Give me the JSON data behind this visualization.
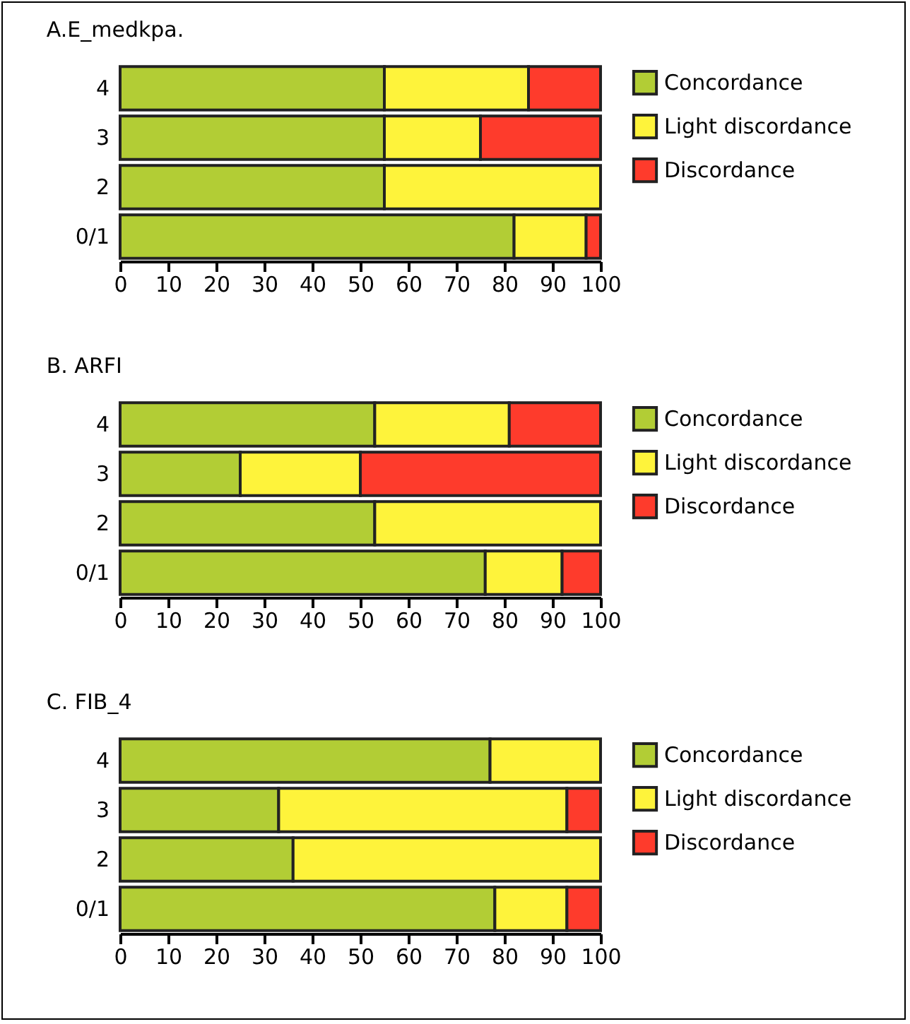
{
  "chart_data": [
    {
      "type": "bar",
      "orientation": "horizontal",
      "stacked": true,
      "title": "A.E_medkpa.",
      "categories": [
        "4",
        "3",
        "2",
        "0/1"
      ],
      "xlim": [
        0,
        100
      ],
      "xticks": [
        0,
        10,
        20,
        30,
        40,
        50,
        60,
        70,
        80,
        90,
        100
      ],
      "legend": "top right",
      "series": [
        {
          "name": "Concordance",
          "color": "#b2cd35",
          "values": [
            55,
            55,
            55,
            82
          ]
        },
        {
          "name": "Light discordance",
          "color": "#fef33b",
          "values": [
            30,
            20,
            45,
            15
          ]
        },
        {
          "name": "Discordance",
          "color": "#fe3b2c",
          "values": [
            15,
            25,
            null,
            3
          ]
        }
      ]
    },
    {
      "type": "bar",
      "orientation": "horizontal",
      "stacked": true,
      "title": "B. ARFI",
      "categories": [
        "4",
        "3",
        "2",
        "0/1"
      ],
      "xlim": [
        0,
        100
      ],
      "xticks": [
        0,
        10,
        20,
        30,
        40,
        50,
        60,
        70,
        80,
        90,
        100
      ],
      "legend": "top right",
      "series": [
        {
          "name": "Concordance",
          "color": "#b2cd35",
          "values": [
            53,
            25,
            53,
            76
          ]
        },
        {
          "name": "Light discordance",
          "color": "#fef33b",
          "values": [
            28,
            25,
            47,
            16
          ]
        },
        {
          "name": "Discordance",
          "color": "#fe3b2c",
          "values": [
            19,
            50,
            null,
            8
          ]
        }
      ]
    },
    {
      "type": "bar",
      "orientation": "horizontal",
      "stacked": true,
      "title": "C. FIB_4",
      "categories": [
        "4",
        "3",
        "2",
        "0/1"
      ],
      "xlim": [
        0,
        100
      ],
      "xticks": [
        0,
        10,
        20,
        30,
        40,
        50,
        60,
        70,
        80,
        90,
        100
      ],
      "legend": "top right",
      "series": [
        {
          "name": "Concordance",
          "color": "#b2cd35",
          "values": [
            77,
            33,
            36,
            78
          ]
        },
        {
          "name": "Light discordance",
          "color": "#fef33b",
          "values": [
            23,
            60,
            64,
            15
          ]
        },
        {
          "name": "Discordance",
          "color": "#fe3b2c",
          "values": [
            null,
            7,
            null,
            7
          ]
        }
      ]
    }
  ]
}
